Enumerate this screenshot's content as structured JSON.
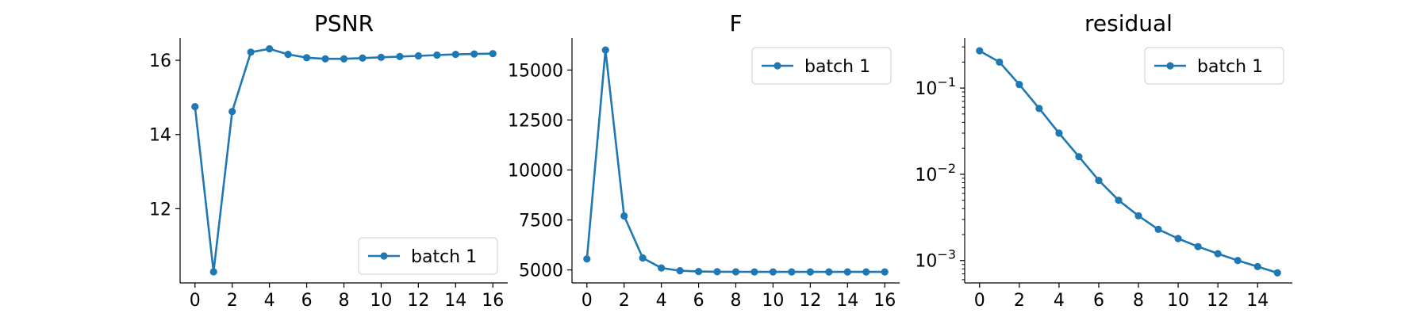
{
  "chart_data": [
    {
      "type": "line",
      "title": "PSNR",
      "x": [
        0,
        1,
        2,
        3,
        4,
        5,
        6,
        7,
        8,
        9,
        10,
        11,
        12,
        13,
        14,
        15,
        16
      ],
      "series": [
        {
          "name": "batch 1",
          "color": "#1f77b4",
          "values": [
            14.75,
            10.3,
            14.62,
            16.22,
            16.31,
            16.16,
            16.07,
            16.04,
            16.04,
            16.06,
            16.08,
            16.1,
            16.12,
            16.14,
            16.16,
            16.17,
            16.18
          ]
        }
      ],
      "xlim": [
        -0.8,
        16.8
      ],
      "ylim": [
        10.0,
        16.6
      ],
      "yscale": "linear",
      "xticks": [
        0,
        2,
        4,
        6,
        8,
        10,
        12,
        14,
        16
      ],
      "yticks": [
        12,
        14,
        16
      ],
      "ytick_labels": [
        "12",
        "14",
        "16"
      ],
      "legend_position": "lower-right",
      "grid": false
    },
    {
      "type": "line",
      "title": "F",
      "x": [
        0,
        1,
        2,
        3,
        4,
        5,
        6,
        7,
        8,
        9,
        10,
        11,
        12,
        13,
        14,
        15,
        16
      ],
      "series": [
        {
          "name": "batch 1",
          "color": "#1f77b4",
          "values": [
            5550,
            16000,
            7700,
            5600,
            5100,
            4960,
            4920,
            4910,
            4905,
            4902,
            4900,
            4900,
            4900,
            4900,
            4900,
            4900,
            4900
          ]
        }
      ],
      "xlim": [
        -0.8,
        16.8
      ],
      "ylim": [
        4350,
        16600
      ],
      "yscale": "linear",
      "xticks": [
        0,
        2,
        4,
        6,
        8,
        10,
        12,
        14,
        16
      ],
      "yticks": [
        5000,
        7500,
        10000,
        12500,
        15000
      ],
      "ytick_labels": [
        "5000",
        "7500",
        "10000",
        "12500",
        "15000"
      ],
      "legend_position": "upper-right",
      "grid": false
    },
    {
      "type": "line",
      "title": "residual",
      "x": [
        0,
        1,
        2,
        3,
        4,
        5,
        6,
        7,
        8,
        9,
        10,
        11,
        12,
        13,
        14,
        15
      ],
      "series": [
        {
          "name": "batch 1",
          "color": "#1f77b4",
          "values": [
            0.27,
            0.2,
            0.11,
            0.058,
            0.03,
            0.016,
            0.0085,
            0.005,
            0.0033,
            0.0023,
            0.0018,
            0.00145,
            0.0012,
            0.001,
            0.00085,
            0.00072
          ]
        }
      ],
      "xlim": [
        -0.75,
        15.75
      ],
      "ylim": [
        0.00055,
        0.38
      ],
      "yscale": "log",
      "xticks": [
        0,
        2,
        4,
        6,
        8,
        10,
        12,
        14
      ],
      "yticks": [
        0.1,
        0.01,
        0.001
      ],
      "ytick_labels": [
        "10−1",
        "10−2",
        "10−3"
      ],
      "legend_position": "upper-right",
      "grid": false
    }
  ]
}
